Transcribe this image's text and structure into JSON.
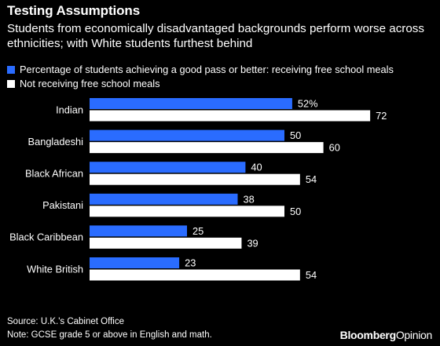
{
  "title": "Testing Assumptions",
  "subtitle": "Students from economically disadvantaged backgrounds perform worse across ethnicities; with White students furthest behind",
  "source": "Source: U.K.'s Cabinet Office",
  "note": "Note: GCSE grade 5 or above in English and math.",
  "brand": {
    "part1": "Bloomberg",
    "part2": "Opinion"
  },
  "colors": {
    "free_meals": "#2a6cff",
    "not_free_meals": "#ffffff",
    "background": "#000000"
  },
  "chart_data": {
    "type": "bar",
    "orientation": "horizontal",
    "categories": [
      "Indian",
      "Bangladeshi",
      "Black African",
      "Pakistani",
      "Black Caribbean",
      "White British"
    ],
    "series": [
      {
        "name": "Percentage of students achieving a good pass or better: receiving free school meals",
        "values": [
          52,
          50,
          40,
          38,
          25,
          23
        ],
        "labels": [
          "52%",
          "50",
          "40",
          "38",
          "25",
          "23"
        ]
      },
      {
        "name": "Not receiving free school meals",
        "values": [
          72,
          60,
          54,
          50,
          39,
          54
        ],
        "labels": [
          "72",
          "60",
          "54",
          "50",
          "39",
          "54"
        ]
      }
    ],
    "xlim": [
      0,
      80
    ],
    "grid": false,
    "legend": "top-left"
  }
}
